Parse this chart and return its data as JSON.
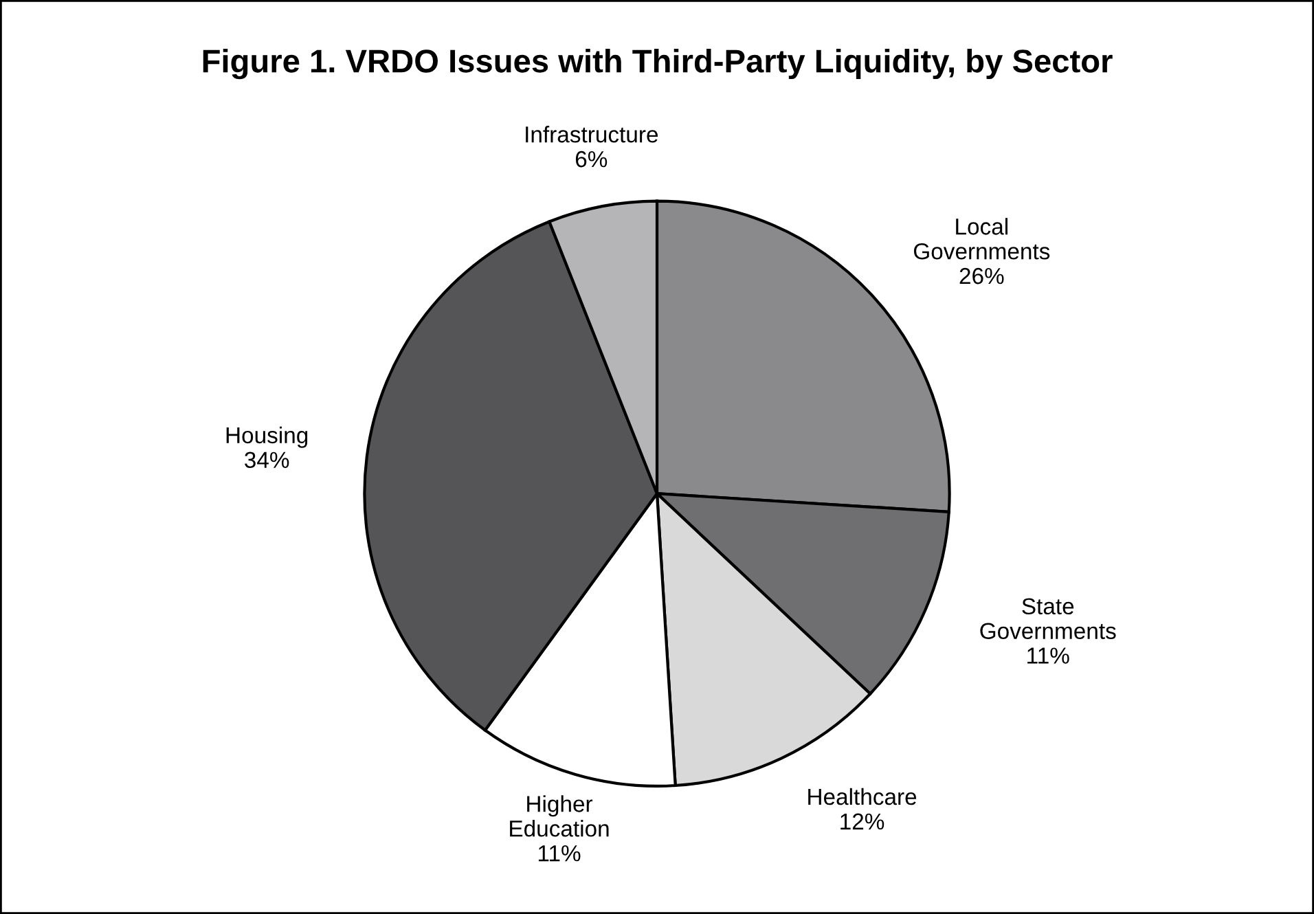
{
  "chart_data": {
    "type": "pie",
    "title": "Figure 1. VRDO Issues with Third-Party Liquidity, by Sector",
    "categories": [
      "Local\nGovernments",
      "State\nGovernments",
      "Healthcare",
      "Higher\nEducation",
      "Housing",
      "Infrastructure"
    ],
    "values": [
      26,
      11,
      12,
      11,
      34,
      6
    ],
    "value_labels": [
      "26%",
      "11%",
      "12%",
      "11%",
      "34%",
      "6%"
    ],
    "colors": [
      "#8a8a8d",
      "#6f6f71",
      "#d9d9da",
      "#ffffff",
      "#555557",
      "#b5b5b8"
    ]
  }
}
